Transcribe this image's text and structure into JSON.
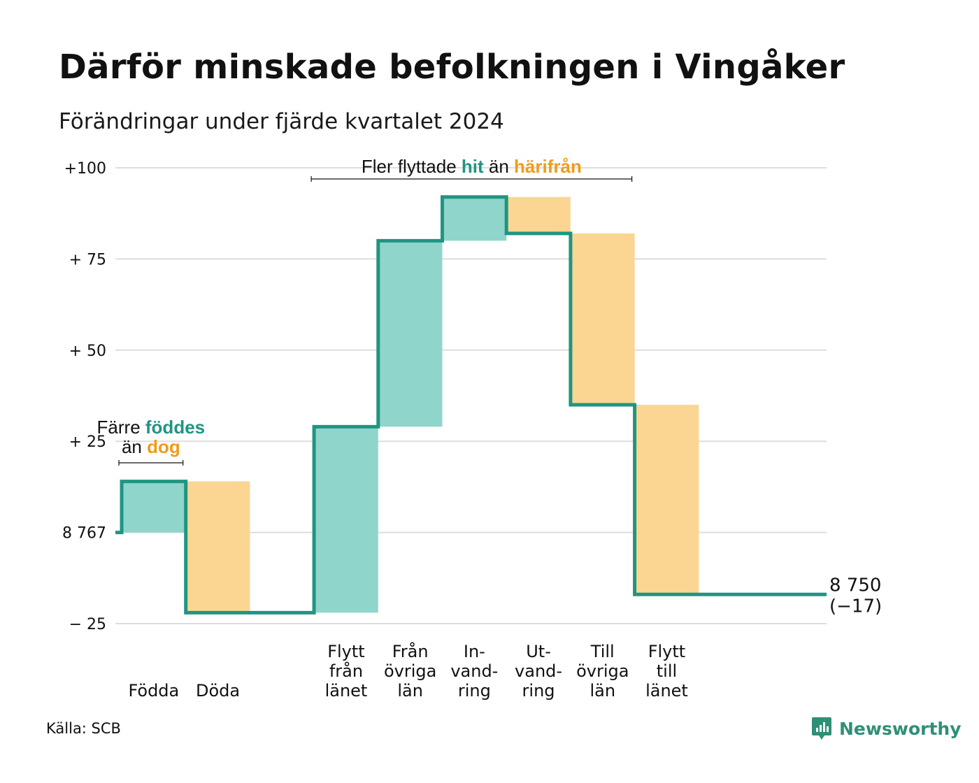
{
  "title": "Därför minskade befolkningen i Vingåker",
  "subtitle": "Förändringar under fjärde kvartalet 2024",
  "source": "Källa: SCB",
  "brand": {
    "name": "Newsworthy",
    "icon": "newsworthy-logo-icon"
  },
  "colors": {
    "line": "#1f9582",
    "inflow": "#8fd5cb",
    "outflow": "#fad692",
    "teal_text": "#1f9582",
    "orange_text": "#ef9c1c",
    "grid": "#dddddd"
  },
  "chart_data": {
    "type": "waterfall",
    "start_population": 8767,
    "end_population": 8750,
    "change": -17,
    "ylim": [
      -25,
      100
    ],
    "yticks": [
      {
        "value": 100,
        "label": "+100"
      },
      {
        "value": 75,
        "label": "+ 75"
      },
      {
        "value": 50,
        "label": "+ 50"
      },
      {
        "value": 25,
        "label": "+ 25"
      },
      {
        "value": 0,
        "label": "8 767"
      },
      {
        "value": -25,
        "label": "−  25"
      }
    ],
    "steps": [
      {
        "label": [
          "Födda"
        ],
        "value": 14,
        "kind": "inflow"
      },
      {
        "label": [
          "Döda"
        ],
        "value": -36,
        "kind": "outflow"
      },
      {
        "label": [],
        "value": 0,
        "kind": "gap"
      },
      {
        "label": [
          "Flytt",
          "från",
          "länet"
        ],
        "value": 51,
        "kind": "inflow"
      },
      {
        "label": [
          "Från",
          "övriga",
          "län"
        ],
        "value": 51,
        "kind": "inflow"
      },
      {
        "label": [
          "In-",
          "vand-",
          "ring"
        ],
        "value": 12,
        "kind": "inflow"
      },
      {
        "label": [
          "Ut-",
          "vand-",
          "ring"
        ],
        "value": -10,
        "kind": "outflow"
      },
      {
        "label": [
          "Till",
          "övriga",
          "län"
        ],
        "value": -47,
        "kind": "outflow"
      },
      {
        "label": [
          "Flytt",
          "till",
          "länet"
        ],
        "value": -52,
        "kind": "outflow"
      }
    ],
    "end_label": [
      "8 750",
      "(−17)"
    ],
    "annotations": [
      {
        "lines": [
          [
            {
              "t": "Färre ",
              "c": "dark"
            },
            {
              "t": "föddes",
              "c": "teal"
            }
          ],
          [
            {
              "t": "än ",
              "c": "dark"
            },
            {
              "t": "dog",
              "c": "orange"
            }
          ]
        ],
        "from_step": 0,
        "to_step": 1
      },
      {
        "lines": [
          [
            {
              "t": "Fler flyttade ",
              "c": "dark"
            },
            {
              "t": "hit",
              "c": "teal"
            },
            {
              "t": " än ",
              "c": "dark"
            },
            {
              "t": "härifrån",
              "c": "orange"
            }
          ]
        ],
        "from_step": 3,
        "to_step": 8
      }
    ]
  }
}
